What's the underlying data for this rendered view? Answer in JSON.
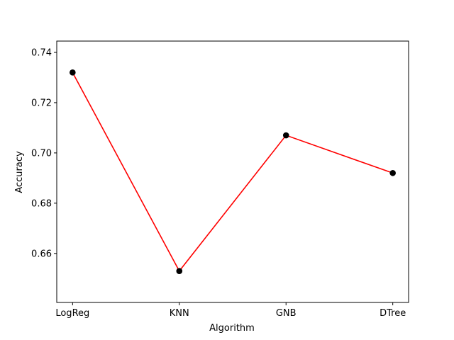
{
  "chart_data": {
    "type": "line",
    "title": "",
    "xlabel": "Algorithm",
    "ylabel": "Accuracy",
    "categories": [
      "LogReg",
      "KNN",
      "GNB",
      "DTree"
    ],
    "series": [
      {
        "name": "Accuracy",
        "values": [
          0.732,
          0.653,
          0.707,
          0.692
        ]
      }
    ],
    "ylim": [
      0.6405,
      0.7445
    ],
    "yticks": [
      0.66,
      0.68,
      0.7,
      0.72,
      0.74
    ],
    "ytick_labels": [
      "0.66",
      "0.68",
      "0.70",
      "0.72",
      "0.74"
    ],
    "grid": false,
    "legend": "none"
  },
  "colors": {
    "line": "#ff0000",
    "marker": "#000000",
    "axes": "#000000",
    "background": "#ffffff"
  }
}
